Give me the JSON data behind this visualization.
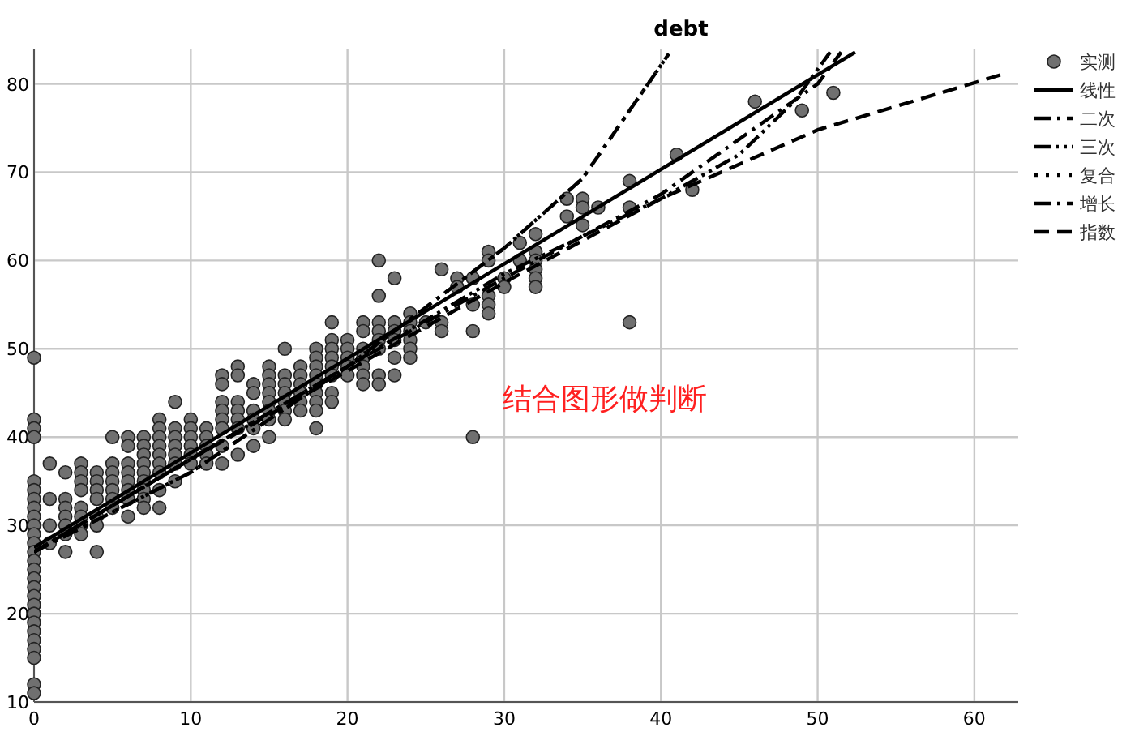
{
  "chart_data": {
    "type": "scatter",
    "title": "debt",
    "xlim": [
      0,
      62.8
    ],
    "ylim": [
      10,
      84
    ],
    "xticks": [
      0,
      10,
      20,
      30,
      40,
      50,
      60
    ],
    "yticks": [
      10,
      20,
      30,
      40,
      50,
      60,
      70,
      80
    ],
    "grid": true,
    "legend": "right",
    "annotations": [
      "结合图形做判断"
    ],
    "series": [
      {
        "name": "实测",
        "marker": "circle",
        "color": "#707070",
        "x": [
          0,
          0,
          0,
          0,
          0,
          0,
          0,
          0,
          0,
          0,
          0,
          0,
          0,
          0,
          0,
          0,
          0,
          0,
          0,
          0,
          0,
          0,
          0,
          0,
          0,
          0,
          0,
          1,
          1,
          1,
          1,
          2,
          2,
          2,
          2,
          2,
          2,
          2,
          3,
          3,
          3,
          3,
          3,
          3,
          3,
          3,
          4,
          4,
          4,
          4,
          4,
          4,
          4,
          5,
          5,
          5,
          5,
          5,
          5,
          5,
          6,
          6,
          6,
          6,
          6,
          6,
          6,
          6,
          7,
          7,
          7,
          7,
          7,
          7,
          7,
          7,
          7,
          8,
          8,
          8,
          8,
          8,
          8,
          8,
          8,
          8,
          9,
          9,
          9,
          9,
          9,
          9,
          9,
          10,
          10,
          10,
          10,
          10,
          10,
          11,
          11,
          11,
          11,
          11,
          12,
          12,
          12,
          12,
          12,
          12,
          12,
          12,
          13,
          13,
          13,
          13,
          13,
          13,
          13,
          14,
          14,
          14,
          14,
          14,
          14,
          15,
          15,
          15,
          15,
          15,
          15,
          15,
          15,
          16,
          16,
          16,
          16,
          16,
          16,
          16,
          17,
          17,
          17,
          17,
          17,
          17,
          18,
          18,
          18,
          18,
          18,
          18,
          18,
          18,
          18,
          19,
          19,
          19,
          19,
          19,
          19,
          19,
          19,
          20,
          20,
          20,
          20,
          20,
          21,
          21,
          21,
          21,
          21,
          21,
          21,
          22,
          22,
          22,
          22,
          22,
          22,
          22,
          22,
          23,
          23,
          23,
          23,
          23,
          23,
          24,
          24,
          24,
          24,
          24,
          24,
          25,
          26,
          26,
          26,
          27,
          27,
          28,
          28,
          28,
          28,
          29,
          29,
          29,
          29,
          29,
          30,
          30,
          31,
          31,
          32,
          32,
          32,
          32,
          32,
          32,
          34,
          34,
          35,
          35,
          35,
          36,
          38,
          38,
          38,
          41,
          42,
          46,
          49,
          51
        ],
        "values": [
          49,
          42,
          41,
          40,
          35,
          34,
          33,
          32,
          31,
          30,
          29,
          28,
          27,
          26,
          25,
          24,
          23,
          22,
          21,
          20,
          19,
          18,
          17,
          16,
          15,
          12,
          11,
          37,
          33,
          30,
          28,
          36,
          33,
          32,
          31,
          30,
          29,
          27,
          37,
          36,
          35,
          34,
          32,
          31,
          30,
          29,
          36,
          35,
          34,
          33,
          31,
          30,
          27,
          40,
          37,
          36,
          35,
          34,
          33,
          32,
          40,
          39,
          37,
          36,
          35,
          34,
          33,
          31,
          40,
          39,
          38,
          37,
          36,
          35,
          34,
          33,
          32,
          42,
          41,
          40,
          39,
          38,
          37,
          36,
          34,
          32,
          44,
          41,
          40,
          39,
          38,
          37,
          35,
          42,
          41,
          40,
          39,
          38,
          37,
          41,
          40,
          39,
          38,
          37,
          47,
          46,
          44,
          43,
          42,
          41,
          39,
          37,
          48,
          47,
          44,
          43,
          42,
          41,
          38,
          46,
          45,
          43,
          42,
          41,
          39,
          48,
          47,
          46,
          45,
          44,
          43,
          42,
          40,
          50,
          47,
          46,
          45,
          44,
          43,
          42,
          48,
          47,
          46,
          45,
          44,
          43,
          50,
          49,
          48,
          47,
          46,
          45,
          44,
          43,
          41,
          53,
          51,
          50,
          49,
          48,
          47,
          45,
          44,
          51,
          50,
          49,
          48,
          47,
          53,
          52,
          50,
          49,
          48,
          47,
          46,
          60,
          56,
          53,
          52,
          51,
          50,
          47,
          46,
          58,
          53,
          52,
          51,
          49,
          47,
          54,
          53,
          52,
          51,
          50,
          49,
          53,
          59,
          53,
          52,
          58,
          57,
          58,
          55,
          52,
          40,
          61,
          60,
          56,
          55,
          54,
          58,
          57,
          62,
          60,
          63,
          61,
          60,
          59,
          58,
          57,
          67,
          65,
          67,
          66,
          64,
          66,
          69,
          66,
          53,
          72,
          68,
          78,
          77,
          79
        ]
      },
      {
        "name": "线性",
        "type": "line",
        "line_style": "solid",
        "color": "#000000",
        "x": [
          0,
          52.4
        ],
        "values": [
          27.5,
          83.6
        ]
      },
      {
        "name": "二次",
        "type": "line",
        "line_style": "dashdot",
        "color": "#000000",
        "x": [
          0,
          10,
          20,
          30,
          40,
          50,
          51.5
        ],
        "values": [
          27,
          37.5,
          48,
          58,
          67.5,
          80,
          83.6
        ]
      },
      {
        "name": "三次",
        "type": "line",
        "line_style": "dashdotdot",
        "color": "#000000",
        "x": [
          0,
          10,
          20,
          30,
          40,
          45,
          48.5,
          50.8
        ],
        "values": [
          27,
          37.5,
          48,
          58.5,
          67,
          72,
          78,
          83.6
        ]
      },
      {
        "name": "复合",
        "type": "line",
        "line_style": "dotted",
        "color": "#000000",
        "x": [
          0,
          10,
          20,
          30,
          35,
          40.5
        ],
        "values": [
          27,
          36,
          48,
          61.4,
          69.3,
          83.4
        ]
      },
      {
        "name": "增长",
        "type": "line",
        "line_style": "dashdot",
        "color": "#000000",
        "x": [
          0,
          10,
          20,
          30,
          35,
          40.5
        ],
        "values": [
          27,
          36,
          48,
          61.4,
          69.3,
          83.4
        ]
      },
      {
        "name": "指数",
        "type": "line",
        "line_style": "dashed",
        "color": "#000000",
        "x": [
          0,
          10,
          20,
          30,
          40,
          50,
          62
        ],
        "values": [
          27,
          37.5,
          47.5,
          57.5,
          67,
          74.8,
          81.2
        ]
      }
    ]
  }
}
